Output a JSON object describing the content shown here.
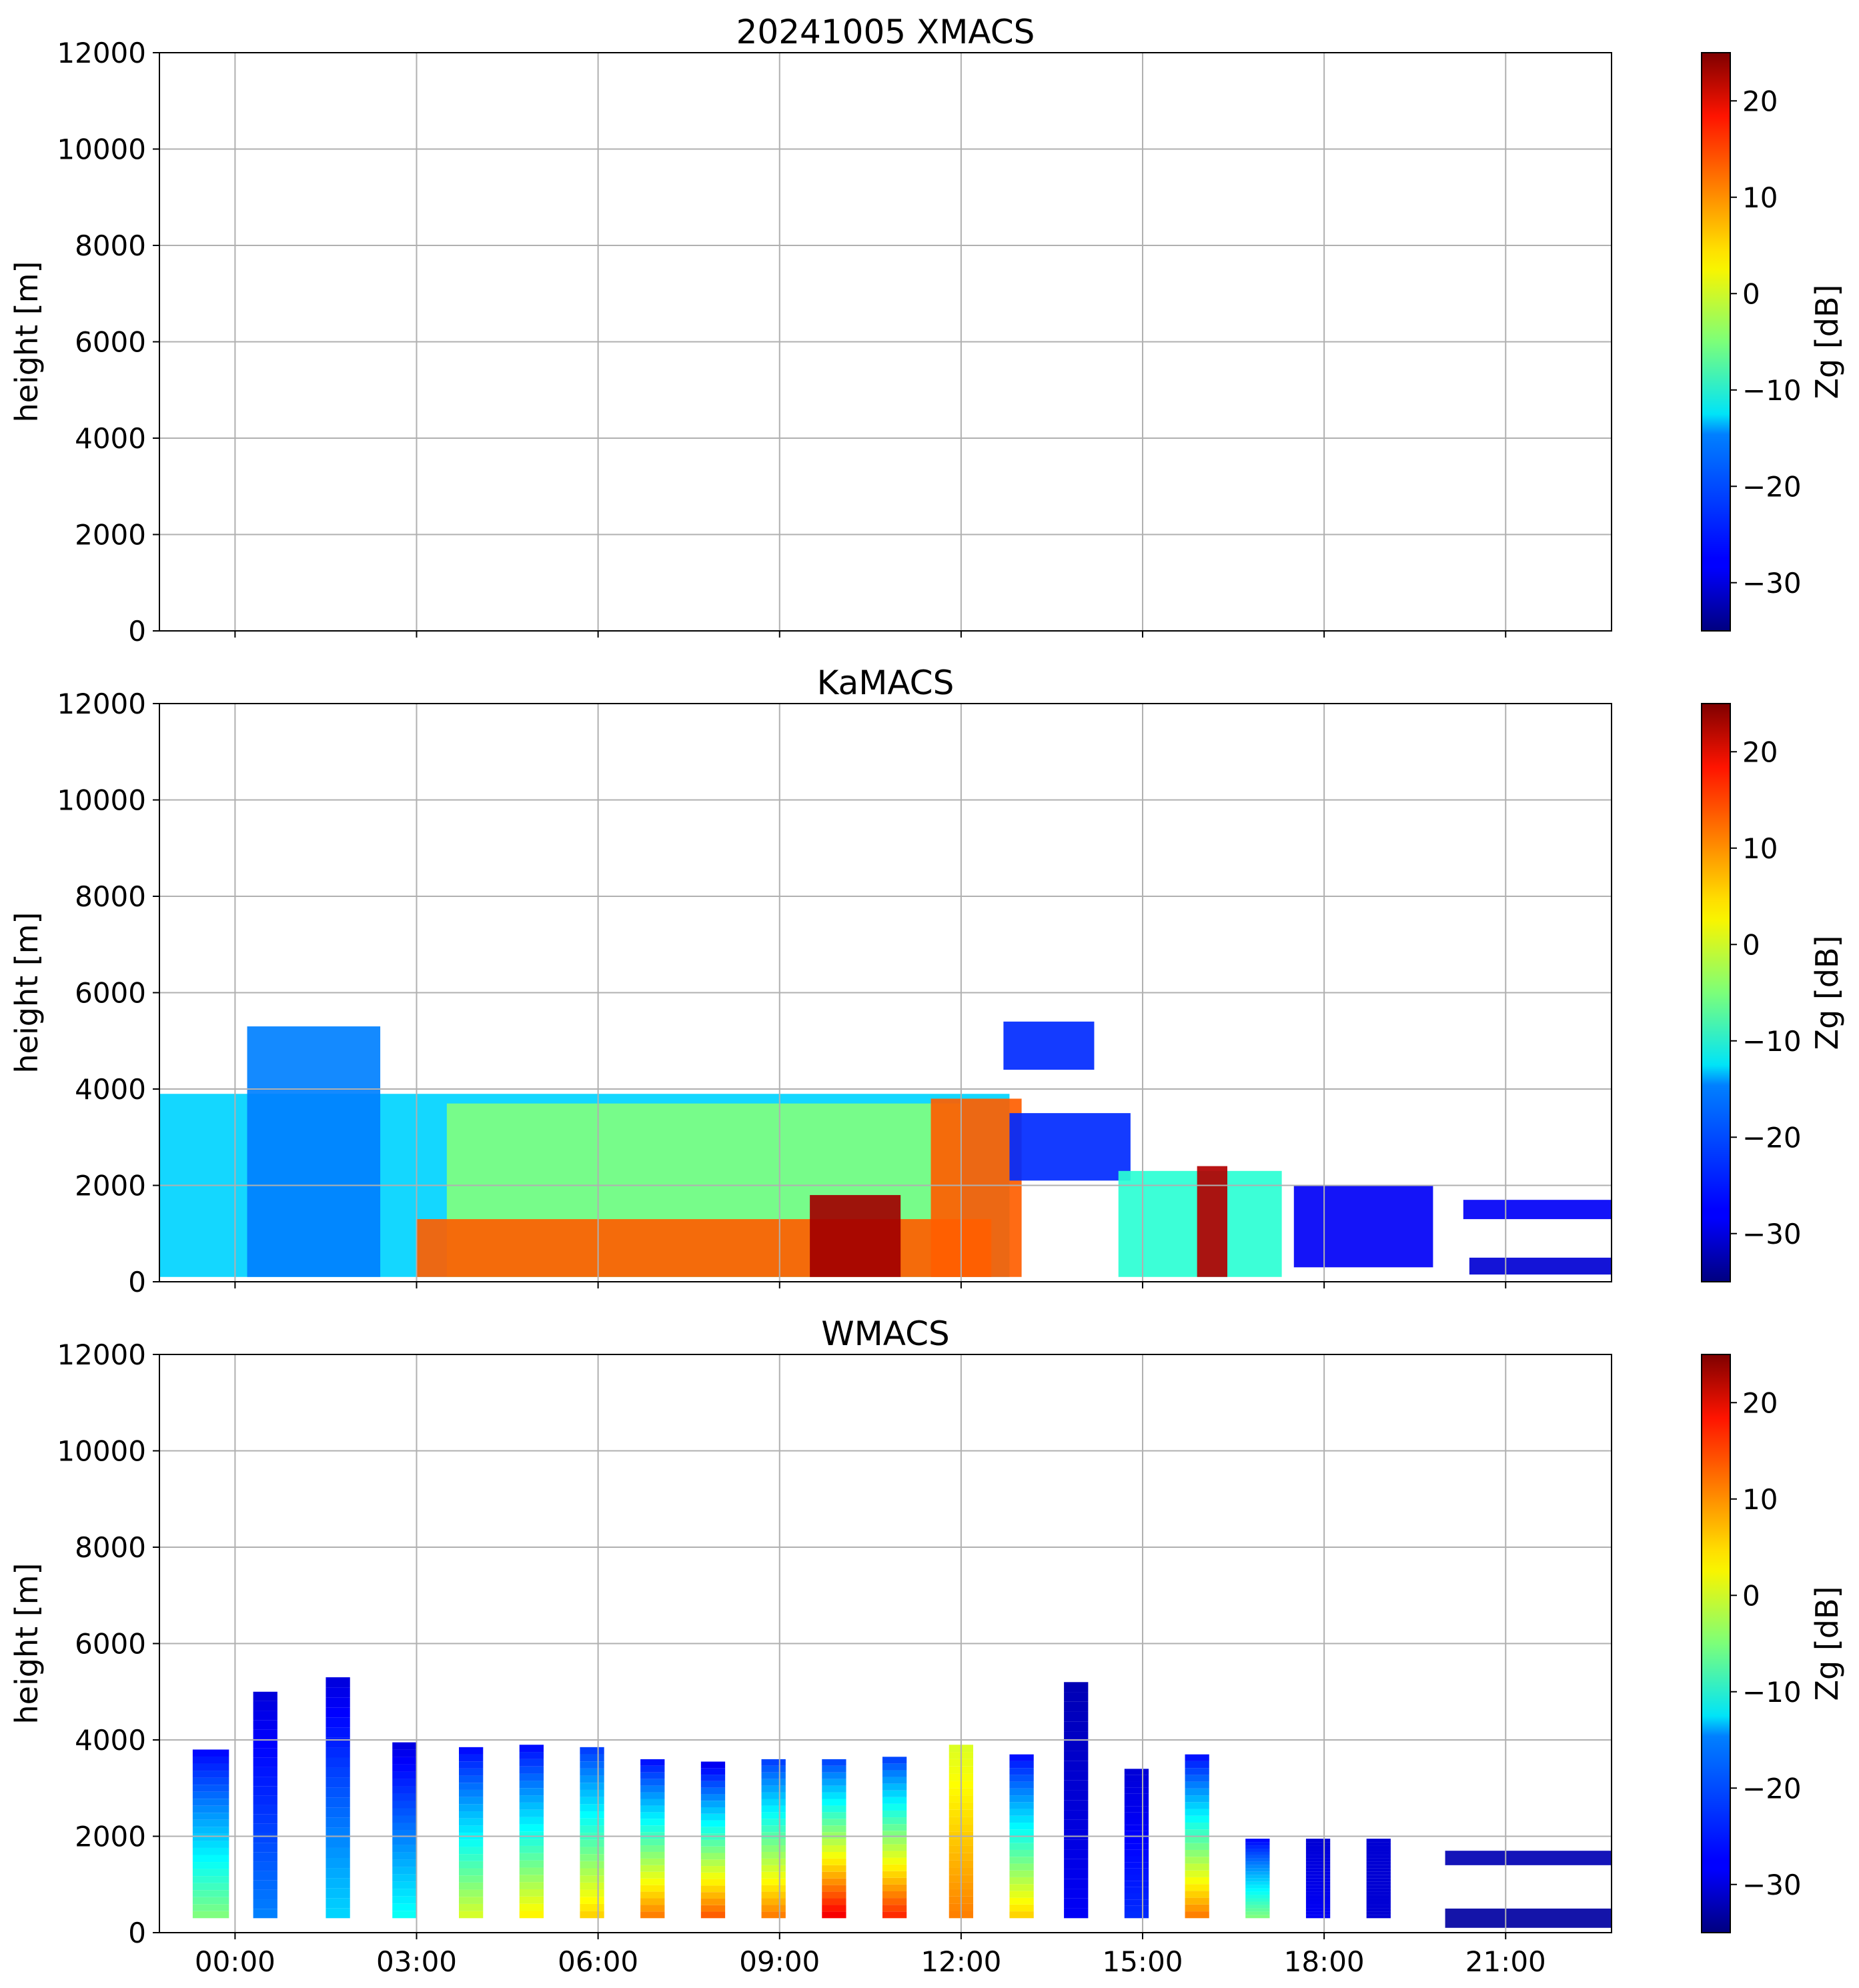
{
  "chart_data": [
    {
      "type": "heatmap",
      "title": "20241005 XMACS",
      "xlabel": "",
      "ylabel": "height [m]",
      "ylim": [
        0,
        12000
      ],
      "xlim_hours": [
        -1.25,
        22.75
      ],
      "yticks": [
        "0",
        "2000",
        "4000",
        "6000",
        "8000",
        "10000",
        "12000"
      ],
      "xticks": [
        "00:00",
        "03:00",
        "06:00",
        "09:00",
        "12:00",
        "15:00",
        "18:00",
        "21:00"
      ],
      "show_xtick_labels": false,
      "grid": true,
      "colorbar": {
        "label": "Zg [dB]",
        "range": [
          -35,
          25
        ],
        "ticks": [
          "−30",
          "−20",
          "−10",
          "0",
          "10",
          "20"
        ],
        "colormap": "jet"
      },
      "features": []
    },
    {
      "type": "heatmap",
      "title": "KaMACS",
      "xlabel": "",
      "ylabel": "height [m]",
      "ylim": [
        0,
        12000
      ],
      "xlim_hours": [
        -1.25,
        22.75
      ],
      "yticks": [
        "0",
        "2000",
        "4000",
        "6000",
        "8000",
        "10000",
        "12000"
      ],
      "xticks": [
        "00:00",
        "03:00",
        "06:00",
        "09:00",
        "12:00",
        "15:00",
        "18:00",
        "21:00"
      ],
      "show_xtick_labels": false,
      "grid": true,
      "colorbar": {
        "label": "Zg [dB]",
        "range": [
          -35,
          25
        ],
        "ticks": [
          "−30",
          "−20",
          "−10",
          "0",
          "10",
          "20"
        ],
        "colormap": "jet"
      },
      "features": [
        {
          "name": "main-cloud-layer",
          "t0": -1.25,
          "t1": 12.8,
          "h0": 100,
          "h1": 3900,
          "z": -15
        },
        {
          "name": "early-tall-plume",
          "t0": 0.2,
          "t1": 2.4,
          "h0": 100,
          "h1": 5300,
          "z": -20
        },
        {
          "name": "mid-cloud-layer",
          "t0": 3.5,
          "t1": 12.0,
          "h0": 100,
          "h1": 3700,
          "z": -5
        },
        {
          "name": "near-surface-band",
          "t0": 3.0,
          "t1": 12.5,
          "h0": 100,
          "h1": 1300,
          "z": 12
        },
        {
          "name": "morning-rain-core",
          "t0": 9.5,
          "t1": 11.0,
          "h0": 100,
          "h1": 1800,
          "z": 23
        },
        {
          "name": "noon-convective-core",
          "t0": 11.5,
          "t1": 13.0,
          "h0": 100,
          "h1": 3800,
          "z": 12
        },
        {
          "name": "afternoon-anvil",
          "t0": 12.8,
          "t1": 14.8,
          "h0": 2100,
          "h1": 3500,
          "z": -25
        },
        {
          "name": "upper-fragment",
          "t0": 12.7,
          "t1": 14.2,
          "h0": 4400,
          "h1": 5400,
          "z": -25
        },
        {
          "name": "afternoon-cell",
          "t0": 14.6,
          "t1": 17.3,
          "h0": 100,
          "h1": 2300,
          "z": -10
        },
        {
          "name": "afternoon-cell-core",
          "t0": 15.9,
          "t1": 16.4,
          "h0": 100,
          "h1": 2400,
          "z": 22
        },
        {
          "name": "evening-layer",
          "t0": 17.5,
          "t1": 19.8,
          "h0": 300,
          "h1": 2000,
          "z": -28
        },
        {
          "name": "late-layer-upper",
          "t0": 20.3,
          "t1": 22.75,
          "h0": 1300,
          "h1": 1700,
          "z": -28
        },
        {
          "name": "late-layer-lower",
          "t0": 20.4,
          "t1": 22.75,
          "h0": 150,
          "h1": 500,
          "z": -30
        }
      ]
    },
    {
      "type": "heatmap",
      "title": "WMACS",
      "xlabel": "",
      "ylabel": "height [m]",
      "ylim": [
        0,
        12000
      ],
      "xlim_hours": [
        -1.25,
        22.75
      ],
      "yticks": [
        "0",
        "2000",
        "4000",
        "6000",
        "8000",
        "10000",
        "12000"
      ],
      "xticks": [
        "00:00",
        "03:00",
        "06:00",
        "09:00",
        "12:00",
        "15:00",
        "18:00",
        "21:00"
      ],
      "show_xtick_labels": true,
      "grid": true,
      "colorbar": {
        "label": "Zg [dB]",
        "range": [
          -35,
          25
        ],
        "ticks": [
          "−30",
          "−20",
          "−10",
          "0",
          "10",
          "20"
        ],
        "colormap": "jet"
      },
      "columns": [
        {
          "t0": -0.7,
          "t1": -0.1,
          "top": 3800,
          "bottom_z": -5,
          "top_z": -28
        },
        {
          "t0": 0.3,
          "t1": 0.7,
          "top": 5000,
          "bottom_z": -20,
          "top_z": -30
        },
        {
          "t0": 1.5,
          "t1": 1.9,
          "top": 5300,
          "bottom_z": -15,
          "top_z": -30
        },
        {
          "t0": 2.6,
          "t1": 3.0,
          "top": 3950,
          "bottom_z": -12,
          "top_z": -30
        },
        {
          "t0": 3.7,
          "t1": 4.1,
          "top": 3850,
          "bottom_z": 0,
          "top_z": -28
        },
        {
          "t0": 4.7,
          "t1": 5.1,
          "top": 3900,
          "bottom_z": 3,
          "top_z": -28
        },
        {
          "t0": 5.7,
          "t1": 6.1,
          "top": 3850,
          "bottom_z": 5,
          "top_z": -25
        },
        {
          "t0": 6.7,
          "t1": 7.1,
          "top": 3600,
          "bottom_z": 10,
          "top_z": -28
        },
        {
          "t0": 7.7,
          "t1": 8.1,
          "top": 3550,
          "bottom_z": 12,
          "top_z": -30
        },
        {
          "t0": 8.7,
          "t1": 9.1,
          "top": 3600,
          "bottom_z": 10,
          "top_z": -25
        },
        {
          "t0": 9.7,
          "t1": 10.1,
          "top": 3600,
          "bottom_z": 18,
          "top_z": -25
        },
        {
          "t0": 10.7,
          "t1": 11.1,
          "top": 3650,
          "bottom_z": 15,
          "top_z": -25
        },
        {
          "t0": 11.8,
          "t1": 12.2,
          "top": 3900,
          "bottom_z": 10,
          "top_z": 0
        },
        {
          "t0": 12.8,
          "t1": 13.2,
          "top": 3700,
          "bottom_z": 5,
          "top_z": -28
        },
        {
          "t0": 13.7,
          "t1": 14.1,
          "top": 5200,
          "bottom_z": -28,
          "top_z": -32
        },
        {
          "t0": 14.7,
          "t1": 15.1,
          "top": 3400,
          "bottom_z": -25,
          "top_z": -30
        },
        {
          "t0": 15.7,
          "t1": 16.1,
          "top": 3700,
          "bottom_z": 10,
          "top_z": -28
        },
        {
          "t0": 16.7,
          "t1": 17.1,
          "top": 1950,
          "bottom_z": -5,
          "top_z": -28
        },
        {
          "t0": 17.7,
          "t1": 18.1,
          "top": 1950,
          "bottom_z": -28,
          "top_z": -30
        },
        {
          "t0": 18.7,
          "t1": 19.1,
          "top": 1950,
          "bottom_z": -30,
          "top_z": -30
        }
      ],
      "features": [
        {
          "name": "late-upper-line",
          "t0": 20.0,
          "t1": 22.75,
          "h0": 1400,
          "h1": 1700,
          "z": -32
        },
        {
          "name": "late-surface-layer",
          "t0": 20.0,
          "t1": 22.75,
          "h0": 100,
          "h1": 500,
          "z": -33
        }
      ]
    }
  ]
}
